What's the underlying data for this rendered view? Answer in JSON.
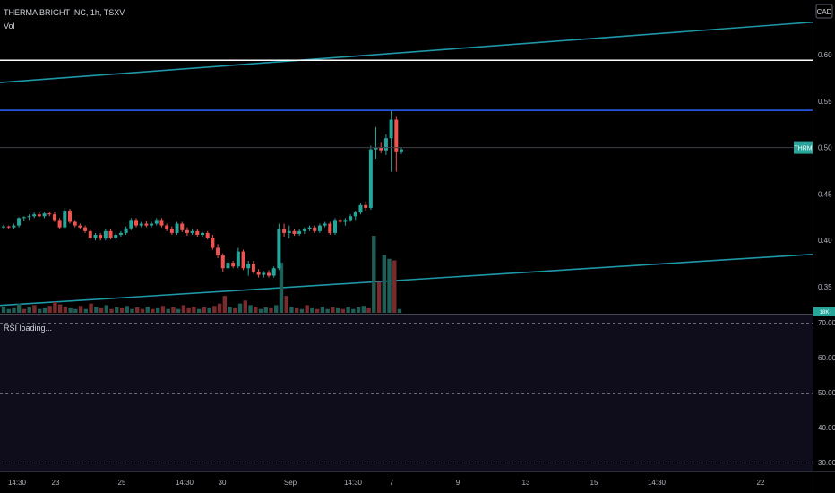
{
  "header": {
    "symbol_title": "THERMA BRIGHT INC, 1h, TSXV",
    "volume_label": "Vol"
  },
  "currency_badge": "CAD",
  "last_price_tag": "THRM",
  "volume_axis_tag": "18K",
  "rsi": {
    "status": "RSI loading...",
    "ticks": [
      "70.00",
      "60.00",
      "50.00",
      "40.00",
      "30.00"
    ]
  },
  "colors": {
    "up": "#26a69a",
    "down": "#ef5350",
    "upper_channel": "#1e97a8",
    "lower_channel": "#1e97a8",
    "white_line": "#ffffff",
    "blue_line": "#2962ff",
    "rsi_bg": "#0f0d1c"
  },
  "chart_data": {
    "type": "candlestick",
    "y_axis": {
      "ticks": [
        0.35,
        0.4,
        0.45,
        0.5,
        0.55,
        0.6
      ],
      "range": [
        0.32,
        0.66
      ]
    },
    "x_axis": {
      "ticks": [
        "14:30",
        "23",
        "25",
        "14:30",
        "30",
        "Sep",
        "14:30",
        "7",
        "9",
        "13",
        "15",
        "14:30",
        "22"
      ]
    },
    "horizontal_lines": [
      {
        "name": "white",
        "value": 0.594
      },
      {
        "name": "blue",
        "value": 0.54
      }
    ],
    "trend_lines": [
      {
        "name": "upper",
        "from": [
          0,
          0.57
        ],
        "to": [
          1,
          0.635
        ]
      },
      {
        "name": "lower",
        "from": [
          0,
          0.33
        ],
        "to": [
          1,
          0.385
        ]
      }
    ],
    "last_price": 0.5,
    "candles": [
      [
        0.415,
        0.417,
        0.413,
        0.415
      ],
      [
        0.415,
        0.416,
        0.412,
        0.414
      ],
      [
        0.414,
        0.418,
        0.412,
        0.416
      ],
      [
        0.416,
        0.425,
        0.414,
        0.424
      ],
      [
        0.424,
        0.426,
        0.421,
        0.425
      ],
      [
        0.425,
        0.428,
        0.422,
        0.426
      ],
      [
        0.426,
        0.43,
        0.424,
        0.428
      ],
      [
        0.428,
        0.43,
        0.425,
        0.426
      ],
      [
        0.426,
        0.43,
        0.424,
        0.429
      ],
      [
        0.429,
        0.431,
        0.426,
        0.428
      ],
      [
        0.428,
        0.431,
        0.42,
        0.422
      ],
      [
        0.422,
        0.424,
        0.412,
        0.414
      ],
      [
        0.414,
        0.435,
        0.413,
        0.432
      ],
      [
        0.432,
        0.434,
        0.418,
        0.42
      ],
      [
        0.42,
        0.422,
        0.414,
        0.416
      ],
      [
        0.416,
        0.418,
        0.412,
        0.414
      ],
      [
        0.414,
        0.416,
        0.408,
        0.41
      ],
      [
        0.41,
        0.412,
        0.401,
        0.403
      ],
      [
        0.403,
        0.408,
        0.4,
        0.406
      ],
      [
        0.406,
        0.408,
        0.4,
        0.402
      ],
      [
        0.402,
        0.412,
        0.4,
        0.41
      ],
      [
        0.41,
        0.412,
        0.401,
        0.403
      ],
      [
        0.403,
        0.408,
        0.401,
        0.406
      ],
      [
        0.406,
        0.41,
        0.404,
        0.408
      ],
      [
        0.408,
        0.415,
        0.406,
        0.413
      ],
      [
        0.413,
        0.424,
        0.411,
        0.422
      ],
      [
        0.422,
        0.424,
        0.414,
        0.416
      ],
      [
        0.416,
        0.42,
        0.414,
        0.418
      ],
      [
        0.418,
        0.421,
        0.414,
        0.416
      ],
      [
        0.416,
        0.42,
        0.414,
        0.418
      ],
      [
        0.418,
        0.424,
        0.416,
        0.422
      ],
      [
        0.422,
        0.424,
        0.414,
        0.416
      ],
      [
        0.416,
        0.418,
        0.41,
        0.412
      ],
      [
        0.412,
        0.415,
        0.406,
        0.408
      ],
      [
        0.408,
        0.42,
        0.406,
        0.418
      ],
      [
        0.418,
        0.42,
        0.409,
        0.411
      ],
      [
        0.411,
        0.414,
        0.405,
        0.408
      ],
      [
        0.408,
        0.412,
        0.406,
        0.41
      ],
      [
        0.41,
        0.412,
        0.404,
        0.406
      ],
      [
        0.406,
        0.409,
        0.404,
        0.408
      ],
      [
        0.408,
        0.41,
        0.401,
        0.403
      ],
      [
        0.403,
        0.406,
        0.39,
        0.392
      ],
      [
        0.392,
        0.396,
        0.381,
        0.384
      ],
      [
        0.384,
        0.386,
        0.366,
        0.37
      ],
      [
        0.37,
        0.38,
        0.368,
        0.376
      ],
      [
        0.376,
        0.378,
        0.37,
        0.372
      ],
      [
        0.372,
        0.392,
        0.37,
        0.388
      ],
      [
        0.388,
        0.39,
        0.368,
        0.37
      ],
      [
        0.37,
        0.378,
        0.362,
        0.375
      ],
      [
        0.375,
        0.378,
        0.364,
        0.366
      ],
      [
        0.366,
        0.369,
        0.36,
        0.363
      ],
      [
        0.363,
        0.367,
        0.36,
        0.365
      ],
      [
        0.365,
        0.368,
        0.36,
        0.362
      ],
      [
        0.362,
        0.372,
        0.36,
        0.37
      ],
      [
        0.37,
        0.418,
        0.368,
        0.412
      ],
      [
        0.412,
        0.418,
        0.404,
        0.408
      ],
      [
        0.408,
        0.416,
        0.402,
        0.41
      ],
      [
        0.41,
        0.412,
        0.405,
        0.407
      ],
      [
        0.407,
        0.412,
        0.405,
        0.41
      ],
      [
        0.41,
        0.414,
        0.407,
        0.412
      ],
      [
        0.412,
        0.416,
        0.41,
        0.414
      ],
      [
        0.414,
        0.416,
        0.408,
        0.41
      ],
      [
        0.41,
        0.418,
        0.408,
        0.416
      ],
      [
        0.416,
        0.42,
        0.414,
        0.418
      ],
      [
        0.418,
        0.42,
        0.406,
        0.408
      ],
      [
        0.408,
        0.424,
        0.406,
        0.422
      ],
      [
        0.422,
        0.424,
        0.418,
        0.42
      ],
      [
        0.42,
        0.424,
        0.416,
        0.422
      ],
      [
        0.422,
        0.428,
        0.42,
        0.426
      ],
      [
        0.426,
        0.432,
        0.422,
        0.43
      ],
      [
        0.43,
        0.44,
        0.428,
        0.438
      ],
      [
        0.438,
        0.442,
        0.432,
        0.435
      ],
      [
        0.435,
        0.502,
        0.433,
        0.498
      ],
      [
        0.498,
        0.522,
        0.488,
        0.5
      ],
      [
        0.5,
        0.506,
        0.494,
        0.497
      ],
      [
        0.497,
        0.514,
        0.492,
        0.51
      ],
      [
        0.51,
        0.54,
        0.474,
        0.53
      ],
      [
        0.53,
        0.534,
        0.474,
        0.495
      ],
      [
        0.495,
        0.5,
        0.493,
        0.498
      ]
    ],
    "volume": [
      [
        0.08,
        1
      ],
      [
        0.05,
        1
      ],
      [
        0.06,
        1
      ],
      [
        0.12,
        1
      ],
      [
        0.05,
        0
      ],
      [
        0.07,
        1
      ],
      [
        0.1,
        0
      ],
      [
        0.05,
        1
      ],
      [
        0.06,
        1
      ],
      [
        0.09,
        0
      ],
      [
        0.14,
        0
      ],
      [
        0.11,
        0
      ],
      [
        0.08,
        0
      ],
      [
        0.06,
        1
      ],
      [
        0.05,
        1
      ],
      [
        0.09,
        0
      ],
      [
        0.05,
        1
      ],
      [
        0.12,
        0
      ],
      [
        0.08,
        1
      ],
      [
        0.06,
        0
      ],
      [
        0.1,
        1
      ],
      [
        0.05,
        0
      ],
      [
        0.07,
        1
      ],
      [
        0.06,
        0
      ],
      [
        0.09,
        1
      ],
      [
        0.05,
        1
      ],
      [
        0.07,
        0
      ],
      [
        0.05,
        0
      ],
      [
        0.08,
        1
      ],
      [
        0.05,
        0
      ],
      [
        0.06,
        1
      ],
      [
        0.09,
        0
      ],
      [
        0.05,
        1
      ],
      [
        0.07,
        0
      ],
      [
        0.05,
        1
      ],
      [
        0.1,
        0
      ],
      [
        0.06,
        0
      ],
      [
        0.08,
        0
      ],
      [
        0.05,
        1
      ],
      [
        0.07,
        0
      ],
      [
        0.06,
        1
      ],
      [
        0.09,
        0
      ],
      [
        0.12,
        0
      ],
      [
        0.22,
        0
      ],
      [
        0.08,
        1
      ],
      [
        0.06,
        0
      ],
      [
        0.12,
        1
      ],
      [
        0.16,
        0
      ],
      [
        0.1,
        1
      ],
      [
        0.08,
        0
      ],
      [
        0.05,
        1
      ],
      [
        0.07,
        1
      ],
      [
        0.06,
        0
      ],
      [
        0.1,
        1
      ],
      [
        0.65,
        1
      ],
      [
        0.22,
        0
      ],
      [
        0.08,
        1
      ],
      [
        0.06,
        0
      ],
      [
        0.05,
        1
      ],
      [
        0.1,
        0
      ],
      [
        0.06,
        1
      ],
      [
        0.05,
        0
      ],
      [
        0.08,
        1
      ],
      [
        0.05,
        1
      ],
      [
        0.07,
        0
      ],
      [
        0.06,
        1
      ],
      [
        0.05,
        0
      ],
      [
        0.08,
        1
      ],
      [
        0.05,
        1
      ],
      [
        0.07,
        1
      ],
      [
        0.09,
        1
      ],
      [
        0.06,
        0
      ],
      [
        1.0,
        1
      ],
      [
        0.4,
        0
      ],
      [
        0.75,
        1
      ],
      [
        0.7,
        1
      ],
      [
        0.68,
        0
      ],
      [
        0.05,
        1
      ]
    ]
  }
}
